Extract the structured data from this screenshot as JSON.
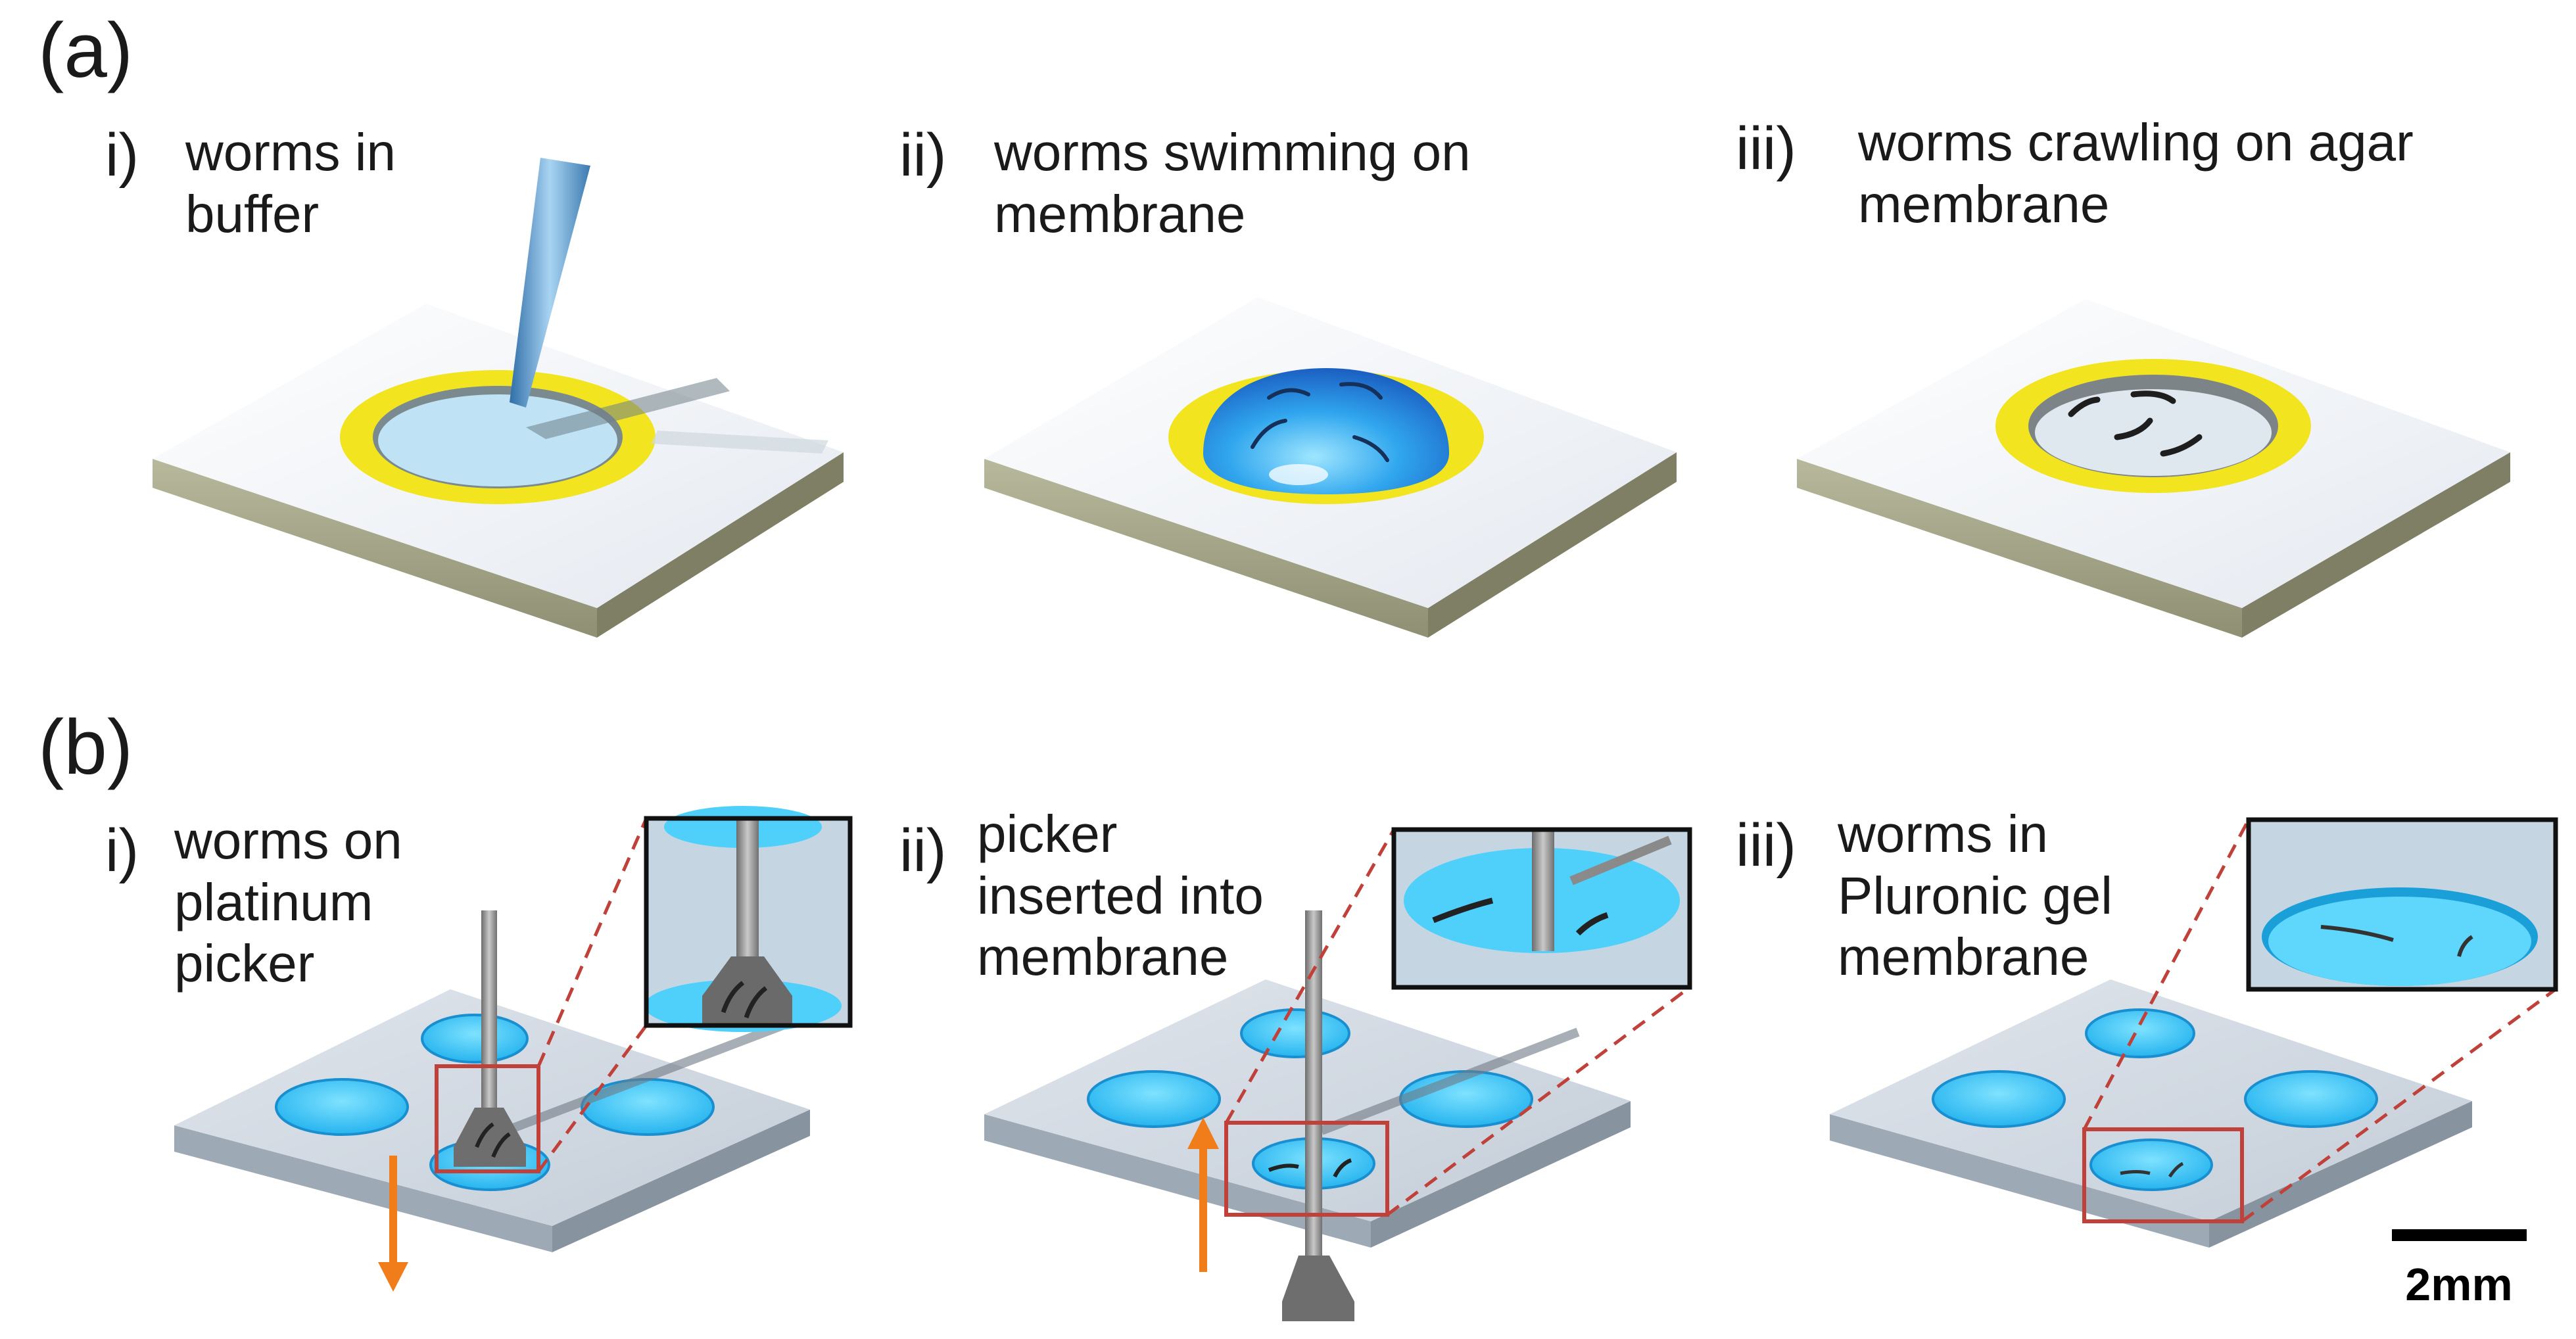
{
  "panel_a": {
    "label": "(a)",
    "items": [
      {
        "num": "i)",
        "caption": "worms in\nbuffer"
      },
      {
        "num": "ii)",
        "caption": "worms swimming on\nmembrane"
      },
      {
        "num": "iii)",
        "caption": "worms crawling on agar\nmembrane"
      }
    ]
  },
  "panel_b": {
    "label": "(b)",
    "items": [
      {
        "num": "i)",
        "caption": "worms on\nplatinum\npicker"
      },
      {
        "num": "ii)",
        "caption": "picker\ninserted into\nmembrane"
      },
      {
        "num": "iii)",
        "caption": "worms in\nPluronic gel\nmembrane"
      }
    ]
  },
  "scale_bar": {
    "label": "2mm"
  },
  "colors": {
    "ring": "#f2e520",
    "liquid": "#3fc8f5",
    "slab_top": "#eef1f5",
    "slab_side": "#a6a68a",
    "chip": "#c9d3dd",
    "arrow": "#f07d1a",
    "zoom_box": "#c0403a"
  }
}
